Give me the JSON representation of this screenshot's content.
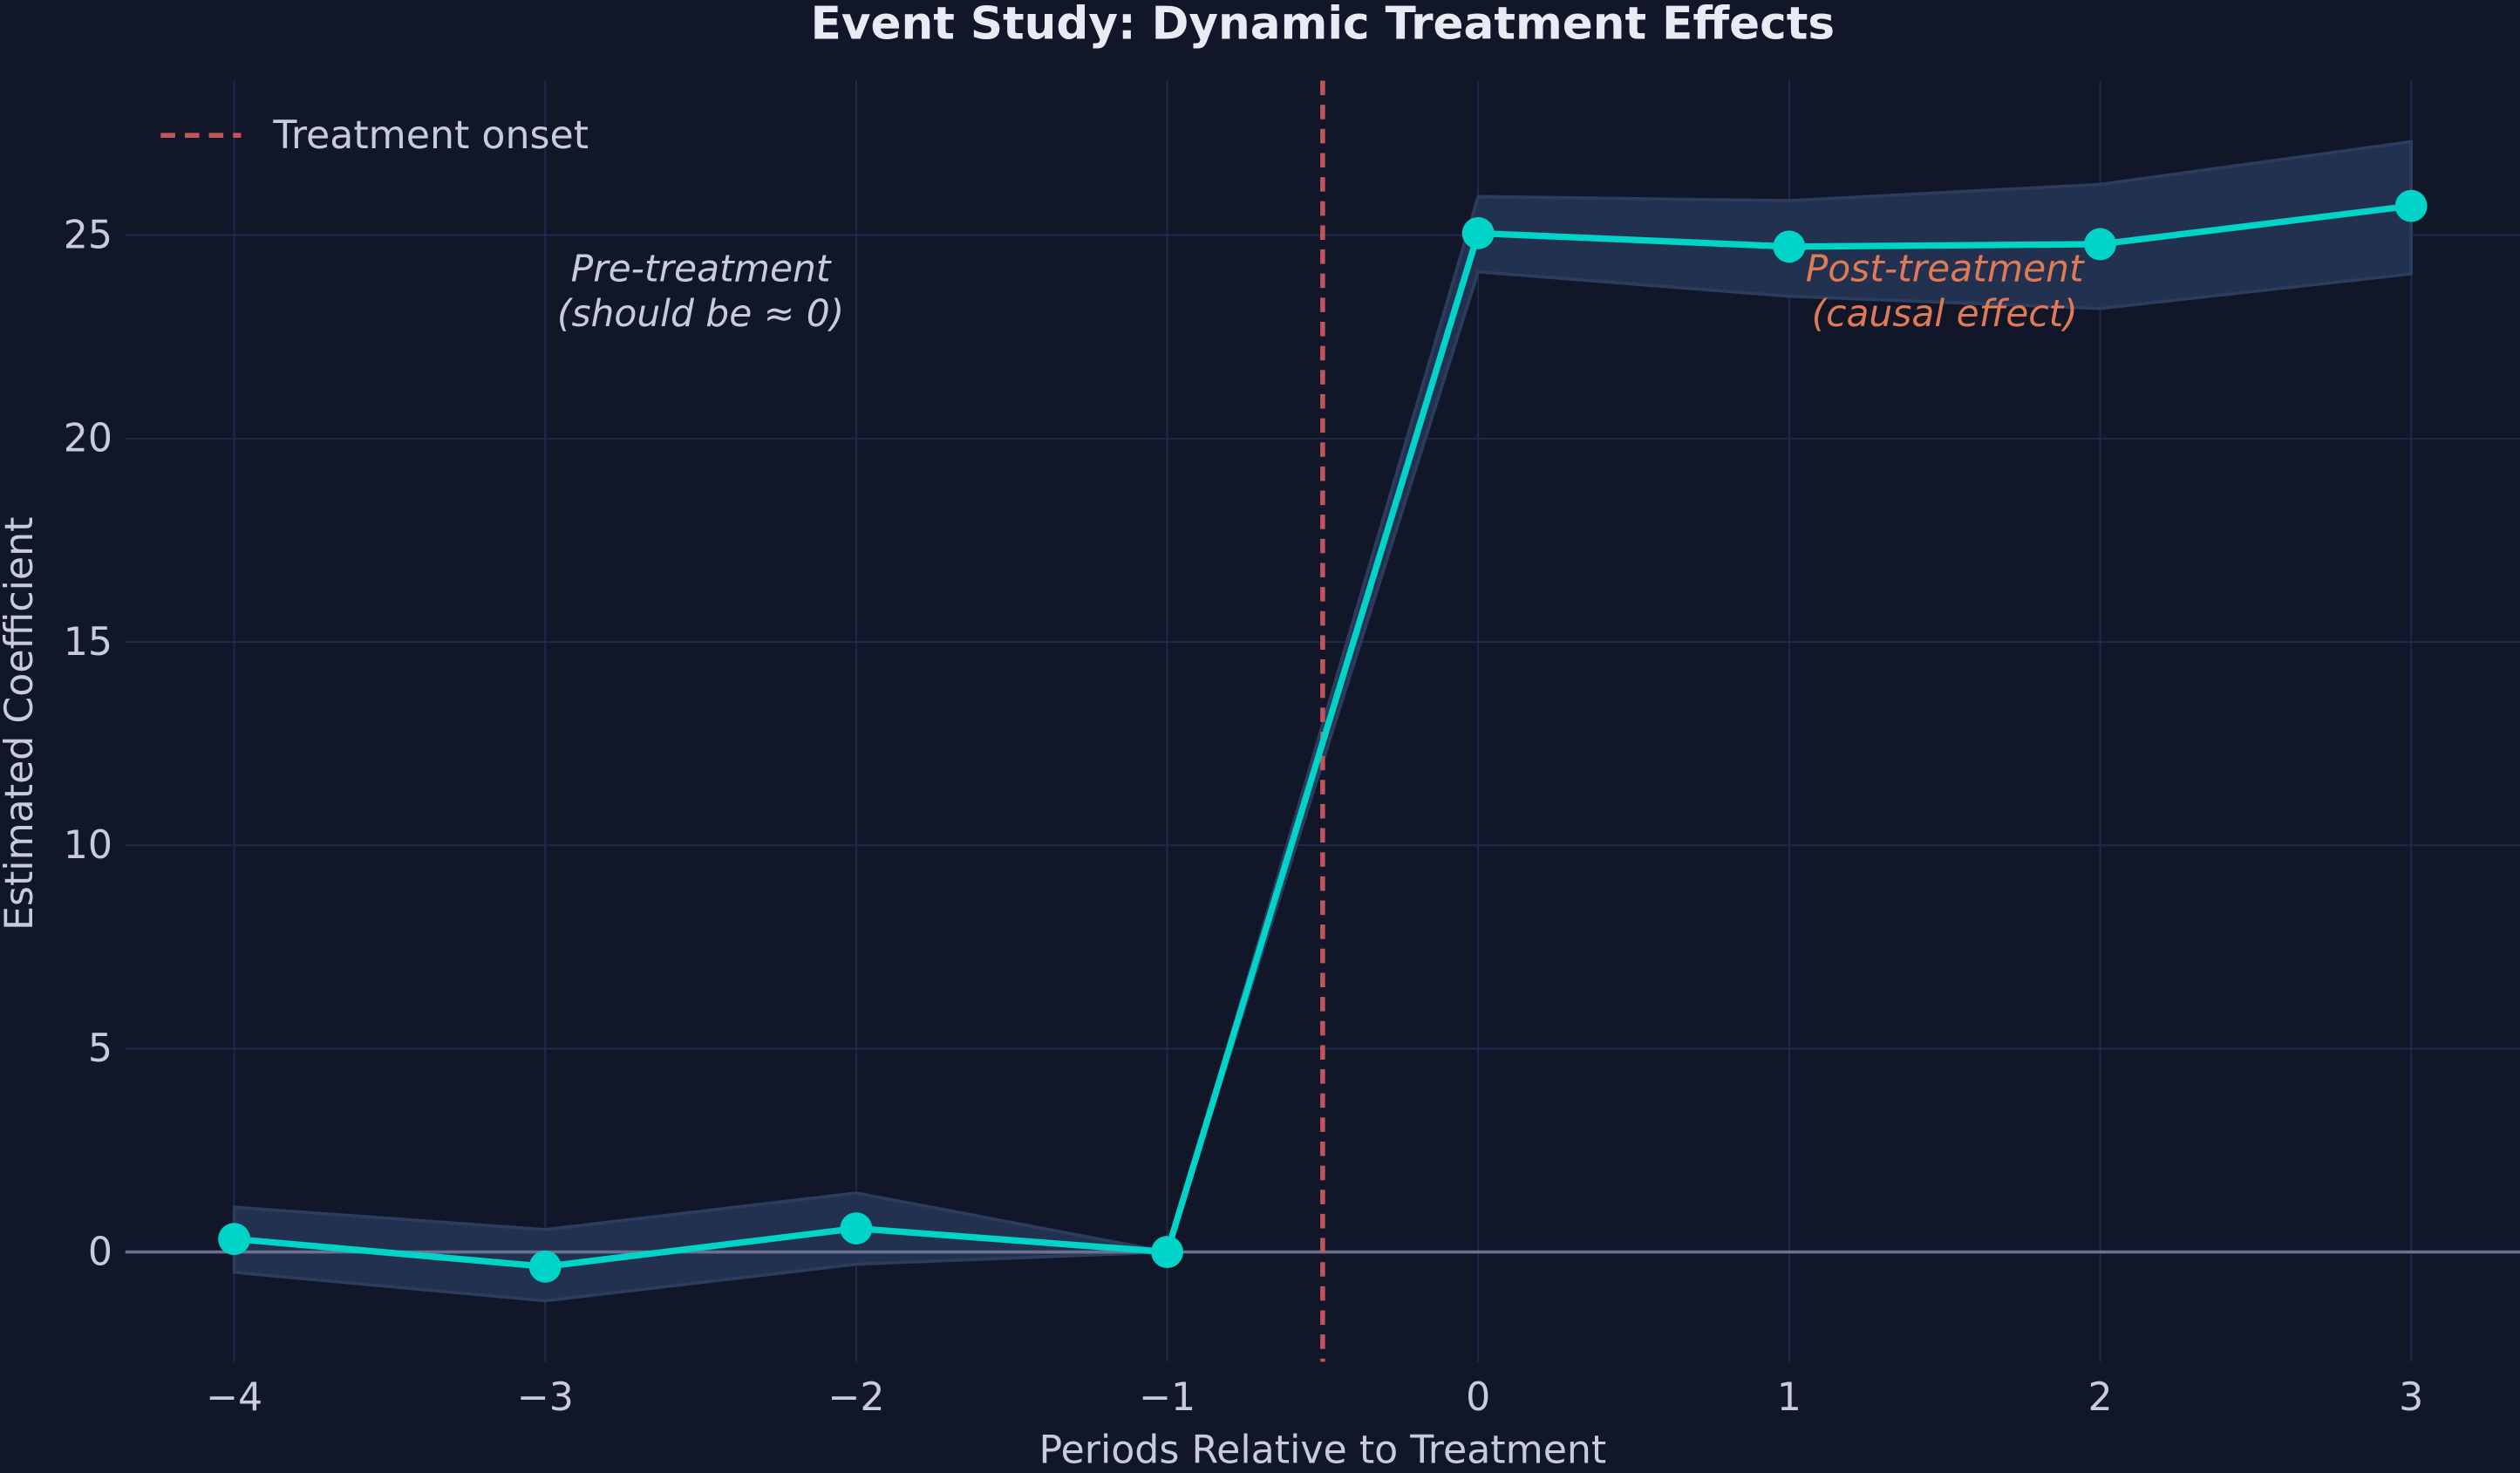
{
  "chart_data": {
    "type": "line",
    "title": "Event Study: Dynamic Treatment Effects",
    "xlabel": "Periods Relative to Treatment",
    "ylabel": "Estimated Coefficient",
    "x": [
      -4,
      -3,
      -2,
      -1,
      0,
      1,
      2,
      3
    ],
    "series": [
      {
        "values": [
          0.32,
          -0.36,
          0.58,
          0.0,
          25.05,
          24.72,
          24.78,
          25.72
        ],
        "ci_upper": [
          1.1,
          0.55,
          1.45,
          0.0,
          25.95,
          25.85,
          26.25,
          27.3
        ],
        "ci_lower": [
          -0.5,
          -1.2,
          -0.3,
          0.0,
          24.1,
          23.5,
          23.2,
          24.05
        ],
        "color": "#00d4c8"
      }
    ],
    "reference_line": {
      "x": -0.5,
      "label": "Treatment onset",
      "style": "dashed",
      "color": "#c0565c"
    },
    "zero_line": {
      "y": 0,
      "color": "#6b7290"
    },
    "xticks": [
      "−4",
      "−3",
      "−2",
      "−1",
      "0",
      "1",
      "2",
      "3"
    ],
    "xtick_values": [
      -4,
      -3,
      -2,
      -1,
      0,
      1,
      2,
      3
    ],
    "yticks": [
      "0",
      "5",
      "10",
      "15",
      "20",
      "25"
    ],
    "ytick_values": [
      0,
      5,
      10,
      15,
      20,
      25
    ],
    "xlim": [
      -4.35,
      3.35
    ],
    "ylim": [
      -2.7,
      28.8
    ],
    "grid": true,
    "legend": "top-left",
    "annotations": [
      {
        "lines": [
          "Pre-treatment",
          "(should be ≈ 0)"
        ],
        "x": -2.5,
        "y": 23,
        "color": "#c8cbe0"
      },
      {
        "lines": [
          "Post-treatment",
          "(causal effect)"
        ],
        "x": 1.5,
        "y": 23,
        "color": "#e07a55"
      }
    ],
    "colors": {
      "background": "#111729",
      "grid": "#1e2a4e",
      "ci_fill": "#223150",
      "text": "#c8cbe0",
      "title": "#e8eaf4"
    }
  }
}
